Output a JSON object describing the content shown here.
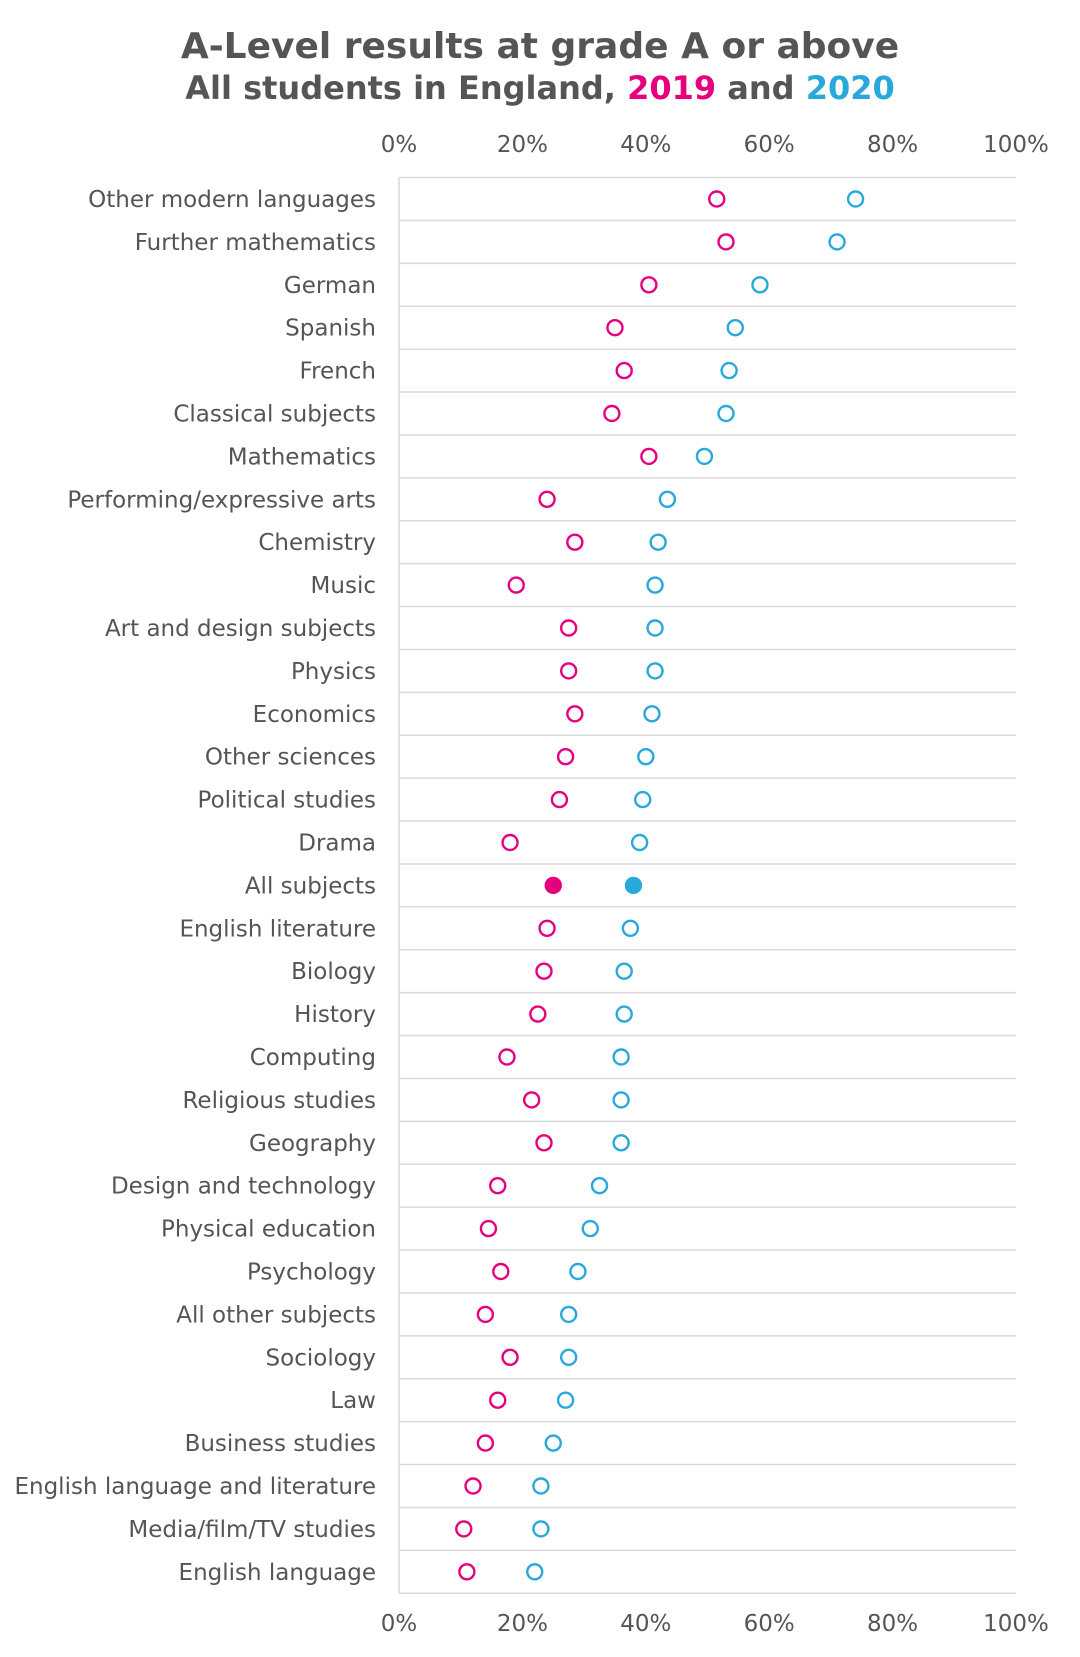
{
  "chart_data": {
    "type": "scatter",
    "title": "A-Level results at grade A or above",
    "subtitle_prefix": "All students in England, ",
    "subtitle_and": " and ",
    "xlim": [
      0,
      100
    ],
    "x_ticks": [
      "0%",
      "20%",
      "40%",
      "60%",
      "80%",
      "100%"
    ],
    "grid": false,
    "legend": "in subtitle",
    "colors": {
      "text": "#555555",
      "2019": "#e6007e",
      "2020": "#29a8dc",
      "gridline": "#d9d9d9"
    },
    "series": [
      {
        "name": "2019",
        "color": "#e6007e"
      },
      {
        "name": "2020",
        "color": "#29a8dc"
      }
    ],
    "categories": [
      "Other modern languages",
      "Further mathematics",
      "German",
      "Spanish",
      "French",
      "Classical subjects",
      "Mathematics",
      "Performing/expressive arts",
      "Chemistry",
      "Music",
      "Art and design subjects",
      "Physics",
      "Economics",
      "Other sciences",
      "Political studies",
      "Drama",
      "All subjects",
      "English literature",
      "Biology",
      "History",
      "Computing",
      "Religious studies",
      "Geography",
      "Design and technology",
      "Physical education",
      "Psychology",
      "All other subjects",
      "Sociology",
      "Law",
      "Business studies",
      "English language and literature",
      "Media/film/TV studies",
      "English language"
    ],
    "values_2019": [
      51.5,
      53,
      40.5,
      35,
      36.5,
      34.5,
      40.5,
      24,
      28.5,
      19,
      27.5,
      27.5,
      28.5,
      27,
      26,
      18,
      25,
      24,
      23.5,
      22.5,
      17.5,
      21.5,
      23.5,
      16,
      14.5,
      16.5,
      14,
      18,
      16,
      14,
      12,
      10.5,
      11
    ],
    "values_2020": [
      74,
      71,
      58.5,
      54.5,
      53.5,
      53,
      49.5,
      43.5,
      42,
      41.5,
      41.5,
      41.5,
      41,
      40,
      39.5,
      39,
      38,
      37.5,
      36.5,
      36.5,
      36,
      36,
      36,
      32.5,
      31,
      29,
      27.5,
      27.5,
      27,
      25,
      23,
      23,
      22
    ],
    "highlighted_category": "All subjects"
  }
}
